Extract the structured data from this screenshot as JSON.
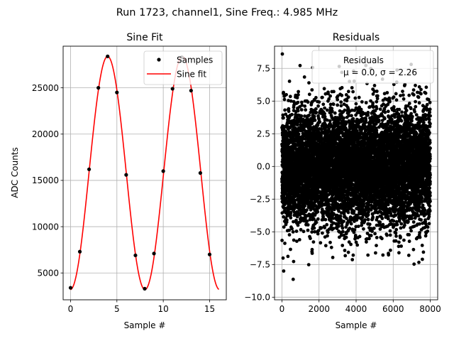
{
  "suptitle": "Run 1723, channel1, Sine Freq.: 4.985 MHz",
  "colors": {
    "fit": "#ff0000",
    "points": "#000000",
    "grid": "#b0b0b0"
  },
  "chart_data": [
    {
      "type": "line",
      "title": "Sine Fit",
      "xlabel": "Sample #",
      "ylabel": "ADC Counts",
      "xlim": [
        -0.8,
        16.8
      ],
      "ylim": [
        2100,
        29500
      ],
      "xticks": [
        0,
        5,
        10,
        15
      ],
      "yticks": [
        5000,
        10000,
        15000,
        20000,
        25000
      ],
      "grid": true,
      "legend_position": "top-right",
      "legend": [
        "Samples",
        "Sine fit"
      ],
      "samples": {
        "x": [
          0,
          1,
          2,
          3,
          4,
          5,
          6,
          7,
          8,
          9,
          10,
          11,
          12,
          13,
          14,
          15
        ],
        "y": [
          3400,
          7300,
          16200,
          25000,
          28400,
          24500,
          15600,
          6900,
          3300,
          7100,
          16000,
          24900,
          28300,
          24700,
          15800,
          7000
        ]
      },
      "fit": {
        "amplitude": 12600,
        "offset": 15800,
        "period": 8.05,
        "phase_peak_at": 4.0,
        "x_range": [
          0,
          16
        ]
      }
    },
    {
      "type": "scatter",
      "title": "Residuals",
      "xlabel": "Sample #",
      "ylabel": "",
      "xlim": [
        -400,
        8400
      ],
      "ylim": [
        -10.2,
        9.2
      ],
      "xticks": [
        0,
        2000,
        4000,
        6000,
        8000
      ],
      "yticks": [
        -10.0,
        -7.5,
        -5.0,
        -2.5,
        0.0,
        2.5,
        5.0,
        7.5
      ],
      "ytick_labels": [
        "−10.0",
        "−7.5",
        "−5.0",
        "−2.5",
        "0.0",
        "2.5",
        "5.0",
        "7.5"
      ],
      "grid": true,
      "legend_position": "top-right",
      "legend": [
        "Residuals",
        "μ = 0.0, σ = 2.26"
      ],
      "n_points": 8000,
      "mu": 0.0,
      "sigma": 2.26,
      "range": [
        -9.2,
        8.6
      ]
    }
  ]
}
